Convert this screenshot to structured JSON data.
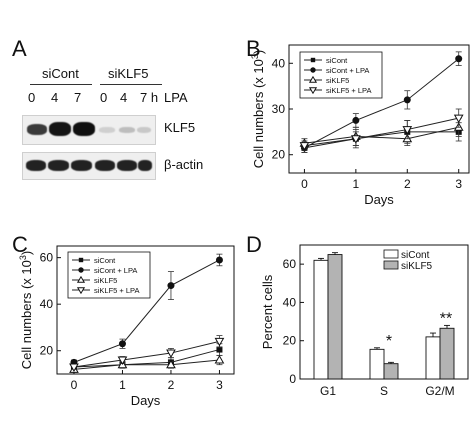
{
  "panel_a": {
    "letter": "A",
    "group_left": "siCont",
    "group_right": "siKLF5",
    "lane_labels": [
      "0",
      "4",
      "7",
      "0",
      "4",
      "7 h"
    ],
    "treatment_label": "LPA",
    "row_labels": [
      "KLF5",
      "β-actin"
    ]
  },
  "chart_data": [
    {
      "panel": "B",
      "type": "line",
      "xlabel": "Days",
      "ylabel": "Cell numbers (x 10",
      "ylabel_sup": "3",
      "ylabel_close": ")",
      "x": [
        0,
        1,
        2,
        3
      ],
      "xlim": [
        -0.3,
        3.2
      ],
      "ylim": [
        16,
        44
      ],
      "yticks": [
        20,
        30,
        40
      ],
      "xticks": [
        0,
        1,
        2,
        3
      ],
      "legend_position": "top-left",
      "series": [
        {
          "name": "siCont",
          "marker": "square",
          "values": [
            21.5,
            23.5,
            25,
            25
          ],
          "errors": [
            1,
            2,
            2.5,
            2
          ]
        },
        {
          "name": "siCont + LPA",
          "marker": "circle",
          "values": [
            21.5,
            27.5,
            32,
            41
          ],
          "errors": [
            1,
            1.5,
            2,
            1.5
          ]
        },
        {
          "name": "siKLF5",
          "marker": "triangle-up",
          "values": [
            22.5,
            24,
            23.5,
            26
          ],
          "errors": [
            1,
            2,
            1.5,
            2
          ]
        },
        {
          "name": "siKLF5 + LPA",
          "marker": "triangle-down",
          "values": [
            22,
            23.5,
            25.5,
            28
          ],
          "errors": [
            1,
            1.5,
            2,
            2
          ]
        }
      ]
    },
    {
      "panel": "C",
      "type": "line",
      "xlabel": "Days",
      "ylabel": "Cell numbers (x 10",
      "ylabel_sup": "3",
      "ylabel_close": ")",
      "x": [
        0,
        1,
        2,
        3
      ],
      "xlim": [
        -0.35,
        3.3
      ],
      "ylim": [
        10,
        65
      ],
      "yticks": [
        20,
        40,
        60
      ],
      "xticks": [
        0,
        1,
        2,
        3
      ],
      "legend_position": "top-left",
      "series": [
        {
          "name": "siCont",
          "marker": "square",
          "values": [
            13,
            14,
            15,
            20.5
          ],
          "errors": [
            1,
            1.5,
            2,
            2.5
          ]
        },
        {
          "name": "siCont + LPA",
          "marker": "circle",
          "values": [
            15,
            23,
            48,
            59
          ],
          "errors": [
            1,
            2,
            6,
            2.5
          ]
        },
        {
          "name": "siKLF5",
          "marker": "triangle-up",
          "values": [
            12,
            14,
            14,
            16
          ],
          "errors": [
            1,
            1,
            1.5,
            2
          ]
        },
        {
          "name": "siKLF5 + LPA",
          "marker": "triangle-down",
          "values": [
            13,
            16,
            19,
            24
          ],
          "errors": [
            1,
            1.5,
            2,
            2.5
          ]
        }
      ]
    },
    {
      "panel": "D",
      "type": "bar",
      "ylabel": "Percent cells",
      "categories": [
        "G1",
        "S",
        "G2/M"
      ],
      "ylim": [
        0,
        70
      ],
      "yticks": [
        0,
        20,
        40,
        60
      ],
      "legend_position": "top-right",
      "significance": [
        "",
        "*",
        "**"
      ],
      "series": [
        {
          "name": "siCont",
          "color": "#ffffff",
          "values": [
            62,
            15.5,
            22
          ],
          "errors": [
            1,
            0.8,
            2
          ]
        },
        {
          "name": "siKLF5",
          "color": "#b3b3b3",
          "values": [
            65,
            8,
            26.5
          ],
          "errors": [
            1,
            0.7,
            1.5
          ]
        }
      ]
    }
  ],
  "panel_letters": {
    "b": "B",
    "c": "C",
    "d": "D"
  }
}
